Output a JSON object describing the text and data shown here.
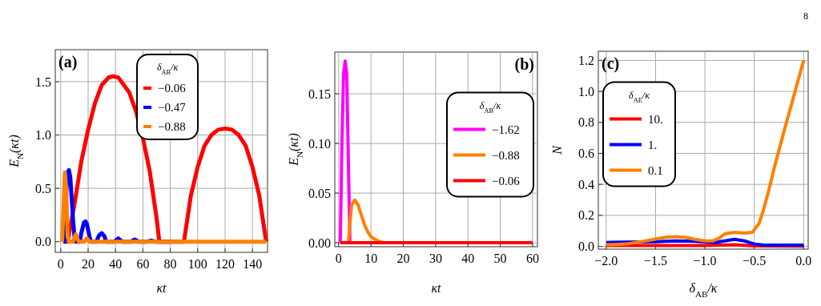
{
  "chart_data": [
    {
      "type": "line",
      "title": "(a)",
      "xlabel": "κt",
      "ylabel": "E$_{N}$(κt)",
      "legend_title": "δ$_{AB}$/κ",
      "legend": "top",
      "grid": true,
      "xlim": [
        -4,
        151
      ],
      "ylim": [
        -0.1,
        1.8
      ],
      "xticks": [
        0,
        20,
        40,
        60,
        80,
        100,
        120,
        140
      ],
      "yticks": [
        {
          "value": 0,
          "label": "0.0"
        },
        {
          "value": 0.5,
          "label": "0.5"
        },
        {
          "value": 1,
          "label": "1.0"
        },
        {
          "value": 1.5,
          "label": "1.5"
        }
      ],
      "series": [
        {
          "name": "−0.06",
          "color": "#ff0000",
          "x": [
            2,
            5,
            10,
            15,
            20,
            25,
            30,
            35,
            38,
            42,
            50,
            55,
            60,
            65,
            70,
            72,
            90,
            95,
            100,
            105,
            110,
            115,
            120,
            125,
            130,
            135,
            140,
            145,
            150
          ],
          "values": [
            0,
            0,
            0.35,
            0.75,
            1.05,
            1.3,
            1.47,
            1.54,
            1.55,
            1.54,
            1.4,
            1.22,
            0.97,
            0.66,
            0.22,
            0,
            0,
            0.43,
            0.7,
            0.9,
            1.0,
            1.05,
            1.06,
            1.05,
            1.0,
            0.9,
            0.7,
            0.43,
            0
          ]
        },
        {
          "name": "−0.47",
          "color": "#0000ff",
          "x": [
            2,
            3,
            4,
            5,
            6,
            7,
            8,
            9,
            10,
            11,
            14,
            15,
            17,
            18,
            19,
            21,
            22,
            26,
            28,
            30,
            32,
            33,
            39,
            42,
            45,
            51,
            54,
            57,
            63,
            66,
            69,
            80
          ],
          "values": [
            0,
            0,
            0.45,
            0.65,
            0.67,
            0.6,
            0.4,
            0.2,
            0.05,
            0,
            0,
            0.08,
            0.18,
            0.19,
            0.17,
            0.05,
            0,
            0,
            0.06,
            0.08,
            0.05,
            0,
            0,
            0.03,
            0,
            0,
            0.02,
            0,
            0,
            0.01,
            0,
            0
          ]
        },
        {
          "name": "−0.88",
          "color": "#ff8000",
          "x": [
            1,
            2,
            3,
            4,
            5,
            6,
            9,
            11,
            13,
            17,
            19,
            21,
            150
          ],
          "values": [
            0,
            0.3,
            0.65,
            0.5,
            0.05,
            0,
            0,
            0.07,
            0,
            0,
            0.03,
            0,
            0
          ]
        }
      ]
    },
    {
      "type": "line",
      "title": "(b)",
      "xlabel": "κt",
      "ylabel": "E$_{N}$(κt)",
      "legend_title": "δ$_{AB}$/κ",
      "legend": "right",
      "grid": true,
      "xlim": [
        -1.2,
        61.5
      ],
      "ylim": [
        -0.004,
        0.192
      ],
      "xticks": [
        0,
        10,
        20,
        30,
        40,
        50,
        60
      ],
      "yticks": [
        {
          "value": 0,
          "label": "0.00"
        },
        {
          "value": 0.05,
          "label": "0.05"
        },
        {
          "value": 0.1,
          "label": "0.10"
        },
        {
          "value": 0.15,
          "label": "0.15"
        }
      ],
      "series": [
        {
          "name": "−1.62",
          "color": "#ff00ff",
          "x": [
            0.5,
            1,
            1.5,
            2,
            2.5,
            3,
            3.5,
            60
          ],
          "values": [
            0,
            0.1,
            0.17,
            0.183,
            0.17,
            0.08,
            0,
            0
          ]
        },
        {
          "name": "−0.88",
          "color": "#ff8000",
          "x": [
            3,
            3.5,
            4,
            5,
            6,
            7,
            8,
            9,
            10,
            12,
            14
          ],
          "values": [
            0,
            0.02,
            0.038,
            0.043,
            0.038,
            0.028,
            0.018,
            0.011,
            0.006,
            0.002,
            0
          ]
        },
        {
          "name": "−0.06",
          "color": "#ff0000",
          "x": [
            0.5,
            60
          ],
          "values": [
            0,
            0
          ]
        }
      ]
    },
    {
      "type": "line",
      "title": "(c)",
      "xlabel": "δ$_{AB}$/κ",
      "ylabel": "N",
      "legend_title": "δ$_{AE}$/κ",
      "legend": "left",
      "grid": true,
      "annotations": [
        "8"
      ],
      "xlim": [
        -2.08,
        0.046
      ],
      "ylim": [
        -0.018,
        1.259
      ],
      "xticks": [
        {
          "value": -2,
          "label": "−2.0"
        },
        {
          "value": -1.5,
          "label": "−1.5"
        },
        {
          "value": -1,
          "label": "−1.0"
        },
        {
          "value": -0.5,
          "label": "−0.5"
        },
        {
          "value": 0,
          "label": "0.0"
        }
      ],
      "yticks": [
        {
          "value": 0,
          "label": "0.0"
        },
        {
          "value": 0.2,
          "label": "0.2"
        },
        {
          "value": 0.4,
          "label": "0.4"
        },
        {
          "value": 0.6,
          "label": "0.6"
        },
        {
          "value": 0.8,
          "label": "0.8"
        },
        {
          "value": 1,
          "label": "1.0"
        },
        {
          "value": 1.2,
          "label": "1.2"
        }
      ],
      "series": [
        {
          "name": "10.",
          "color": "#ff0000",
          "x": [
            -2,
            -1.5,
            -1,
            -0.7,
            -0.5,
            0
          ],
          "values": [
            0.005,
            0.005,
            0.005,
            0.01,
            0.003,
            0.002
          ]
        },
        {
          "name": "1.",
          "color": "#0000ff",
          "x": [
            -2,
            -1.5,
            -1.3,
            -1.1,
            -0.9,
            -0.7,
            -0.6,
            -0.5,
            -0.4,
            0
          ],
          "values": [
            0.025,
            0.03,
            0.035,
            0.033,
            0.025,
            0.045,
            0.035,
            0.015,
            0.008,
            0.008
          ]
        },
        {
          "name": "0.1",
          "color": "#ff8000",
          "x": [
            -2,
            -1.8,
            -1.6,
            -1.4,
            -1.3,
            -1.2,
            -1.1,
            -1,
            -0.92,
            -0.85,
            -0.8,
            -0.75,
            -0.7,
            -0.6,
            -0.52,
            -0.45,
            -0.4,
            -0.35,
            -0.3,
            -0.2,
            -0.1,
            0
          ],
          "values": [
            0.01,
            0.015,
            0.035,
            0.058,
            0.062,
            0.058,
            0.045,
            0.035,
            0.035,
            0.055,
            0.08,
            0.085,
            0.09,
            0.085,
            0.09,
            0.15,
            0.25,
            0.37,
            0.5,
            0.74,
            0.97,
            1.2
          ]
        }
      ]
    }
  ]
}
